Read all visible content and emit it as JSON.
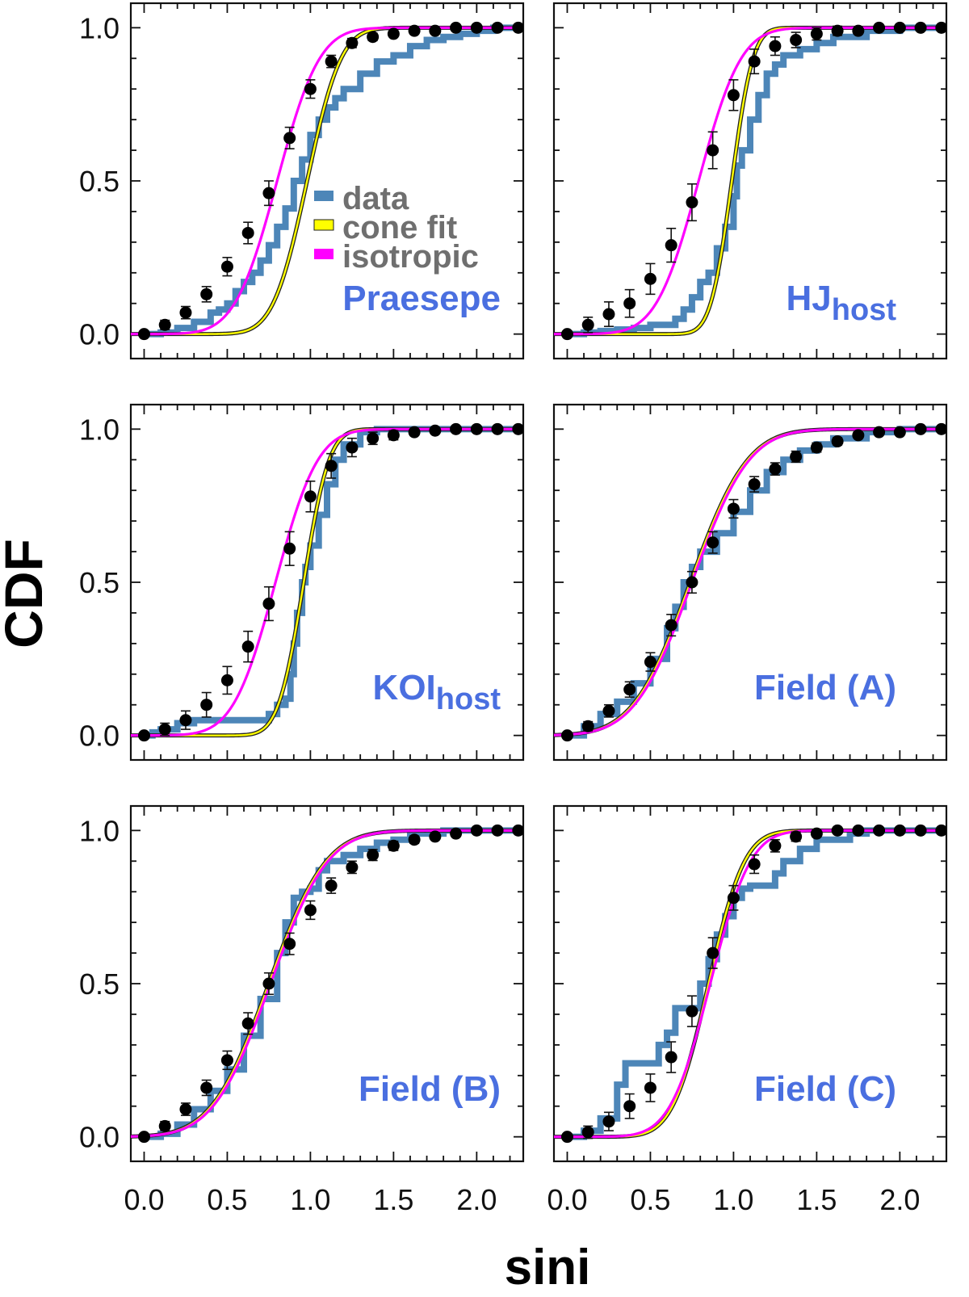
{
  "figure": {
    "xlabel": "sini",
    "ylabel": "CDF"
  },
  "legend": {
    "entries": [
      {
        "label": "data",
        "color": "#4d86b8"
      },
      {
        "label": "cone fit",
        "color": "#ffff00"
      },
      {
        "label": "isotropic",
        "color": "#ff00ff"
      }
    ]
  },
  "colors": {
    "data": "#4d86b8",
    "cone_fit": "#ffff00",
    "cone_fit_outline": "#222222",
    "isotropic": "#ff00ff",
    "points": "#000000",
    "label": "#4a6fe0"
  },
  "chart_data": [
    {
      "type": "line",
      "panel": "Praesepe",
      "label": "Praesepe",
      "sub": "",
      "xlim": [
        -0.08,
        2.28
      ],
      "ylim": [
        -0.08,
        1.08
      ],
      "xticks": [
        "0.0",
        "0.5",
        "1.0",
        "1.5",
        "2.0"
      ],
      "yticks": [
        "0.0",
        "0.5",
        "1.0"
      ],
      "cone_fit": {
        "median": 0.98,
        "width": 0.16
      },
      "isotropic": {
        "median": 0.8,
        "width": 0.2
      },
      "data_steps": [
        [
          0,
          0
        ],
        [
          0.1,
          0.005
        ],
        [
          0.2,
          0.02
        ],
        [
          0.3,
          0.04
        ],
        [
          0.4,
          0.07
        ],
        [
          0.45,
          0.08
        ],
        [
          0.5,
          0.1
        ],
        [
          0.55,
          0.14
        ],
        [
          0.6,
          0.17
        ],
        [
          0.65,
          0.2
        ],
        [
          0.7,
          0.24
        ],
        [
          0.75,
          0.29
        ],
        [
          0.8,
          0.35
        ],
        [
          0.85,
          0.41
        ],
        [
          0.9,
          0.5
        ],
        [
          0.95,
          0.57
        ],
        [
          1.0,
          0.65
        ],
        [
          1.05,
          0.7
        ],
        [
          1.1,
          0.74
        ],
        [
          1.15,
          0.77
        ],
        [
          1.2,
          0.8
        ],
        [
          1.3,
          0.85
        ],
        [
          1.4,
          0.89
        ],
        [
          1.5,
          0.91
        ],
        [
          1.6,
          0.94
        ],
        [
          1.7,
          0.96
        ],
        [
          1.8,
          0.97
        ],
        [
          1.9,
          0.98
        ],
        [
          2.0,
          0.99
        ],
        [
          2.1,
          1.0
        ],
        [
          2.28,
          1.0
        ]
      ],
      "points": {
        "x": [
          0.0,
          0.125,
          0.25,
          0.375,
          0.5,
          0.625,
          0.75,
          0.875,
          1.0,
          1.125,
          1.25,
          1.375,
          1.5,
          1.625,
          1.75,
          1.875,
          2.0,
          2.125,
          2.25
        ],
        "y": [
          0.0,
          0.03,
          0.07,
          0.13,
          0.22,
          0.33,
          0.46,
          0.64,
          0.8,
          0.89,
          0.95,
          0.97,
          0.98,
          0.99,
          0.99,
          1.0,
          1.0,
          1.0,
          1.0
        ],
        "err": [
          0.0,
          0.015,
          0.02,
          0.025,
          0.03,
          0.035,
          0.04,
          0.035,
          0.03,
          0.02,
          0.015,
          0.012,
          0.01,
          0.008,
          0.006,
          0.005,
          0.004,
          0.003,
          0.002
        ]
      }
    },
    {
      "type": "line",
      "panel": "HJ host",
      "label": "HJ",
      "sub": "host",
      "xlim": [
        -0.08,
        2.28
      ],
      "ylim": [
        -0.08,
        1.08
      ],
      "xticks": [
        "0.0",
        "0.5",
        "1.0",
        "1.5",
        "2.0"
      ],
      "yticks": [
        "0.0",
        "0.5",
        "1.0"
      ],
      "cone_fit": {
        "median": 0.99,
        "width": 0.1
      },
      "isotropic": {
        "median": 0.79,
        "width": 0.2
      },
      "data_steps": [
        [
          0,
          0
        ],
        [
          0.1,
          0.005
        ],
        [
          0.2,
          0.01
        ],
        [
          0.3,
          0.015
        ],
        [
          0.4,
          0.02
        ],
        [
          0.5,
          0.03
        ],
        [
          0.6,
          0.03
        ],
        [
          0.65,
          0.05
        ],
        [
          0.7,
          0.08
        ],
        [
          0.75,
          0.12
        ],
        [
          0.8,
          0.17
        ],
        [
          0.85,
          0.2
        ],
        [
          0.9,
          0.28
        ],
        [
          0.95,
          0.35
        ],
        [
          1.0,
          0.45
        ],
        [
          1.02,
          0.55
        ],
        [
          1.05,
          0.6
        ],
        [
          1.1,
          0.7
        ],
        [
          1.15,
          0.78
        ],
        [
          1.2,
          0.85
        ],
        [
          1.25,
          0.88
        ],
        [
          1.3,
          0.91
        ],
        [
          1.4,
          0.93
        ],
        [
          1.5,
          0.95
        ],
        [
          1.6,
          0.97
        ],
        [
          1.8,
          0.99
        ],
        [
          2.0,
          1.0
        ],
        [
          2.28,
          1.0
        ]
      ],
      "points": {
        "x": [
          0.0,
          0.125,
          0.25,
          0.375,
          0.5,
          0.625,
          0.75,
          0.875,
          1.0,
          1.125,
          1.25,
          1.375,
          1.5,
          1.625,
          1.75,
          1.875,
          2.0,
          2.125,
          2.25
        ],
        "y": [
          0.0,
          0.03,
          0.065,
          0.1,
          0.18,
          0.29,
          0.43,
          0.6,
          0.78,
          0.89,
          0.94,
          0.96,
          0.98,
          0.99,
          0.99,
          1.0,
          1.0,
          1.0,
          1.0
        ],
        "err": [
          0.0,
          0.025,
          0.04,
          0.045,
          0.05,
          0.055,
          0.06,
          0.06,
          0.05,
          0.04,
          0.03,
          0.025,
          0.02,
          0.015,
          0.01,
          0.008,
          0.006,
          0.005,
          0.004
        ]
      }
    },
    {
      "type": "line",
      "panel": "KOI host",
      "label": "KOI",
      "sub": "host",
      "xlim": [
        -0.08,
        2.28
      ],
      "ylim": [
        -0.08,
        1.08
      ],
      "xticks": [
        "0.0",
        "0.5",
        "1.0",
        "1.5",
        "2.0"
      ],
      "yticks": [
        "0.0",
        "0.5",
        "1.0"
      ],
      "cone_fit": {
        "median": 0.96,
        "width": 0.12
      },
      "isotropic": {
        "median": 0.79,
        "width": 0.2
      },
      "data_steps": [
        [
          0,
          0
        ],
        [
          0.05,
          0.01
        ],
        [
          0.1,
          0.02
        ],
        [
          0.2,
          0.04
        ],
        [
          0.3,
          0.05
        ],
        [
          0.5,
          0.05
        ],
        [
          0.65,
          0.05
        ],
        [
          0.75,
          0.07
        ],
        [
          0.8,
          0.1
        ],
        [
          0.85,
          0.12
        ],
        [
          0.88,
          0.2
        ],
        [
          0.9,
          0.3
        ],
        [
          0.92,
          0.4
        ],
        [
          0.95,
          0.5
        ],
        [
          0.97,
          0.55
        ],
        [
          1.0,
          0.62
        ],
        [
          1.05,
          0.72
        ],
        [
          1.1,
          0.82
        ],
        [
          1.15,
          0.9
        ],
        [
          1.2,
          0.95
        ],
        [
          1.3,
          0.99
        ],
        [
          1.4,
          1.0
        ],
        [
          2.28,
          1.0
        ]
      ],
      "points": {
        "x": [
          0.0,
          0.125,
          0.25,
          0.375,
          0.5,
          0.625,
          0.75,
          0.875,
          1.0,
          1.125,
          1.25,
          1.375,
          1.5,
          1.625,
          1.75,
          1.875,
          2.0,
          2.125,
          2.25
        ],
        "y": [
          0.0,
          0.02,
          0.05,
          0.1,
          0.18,
          0.29,
          0.43,
          0.61,
          0.78,
          0.88,
          0.94,
          0.97,
          0.98,
          0.99,
          0.995,
          1.0,
          1.0,
          1.0,
          1.0
        ],
        "err": [
          0.0,
          0.02,
          0.03,
          0.04,
          0.045,
          0.05,
          0.055,
          0.055,
          0.05,
          0.04,
          0.03,
          0.02,
          0.015,
          0.01,
          0.008,
          0.006,
          0.005,
          0.004,
          0.003
        ]
      }
    },
    {
      "type": "line",
      "panel": "Field (A)",
      "label": "Field (A)",
      "sub": "",
      "xlim": [
        -0.08,
        2.28
      ],
      "ylim": [
        -0.08,
        1.08
      ],
      "xticks": [
        "0.0",
        "0.5",
        "1.0",
        "1.5",
        "2.0"
      ],
      "yticks": [
        "0.0",
        "0.5",
        "1.0"
      ],
      "cone_fit": {
        "median": 0.74,
        "width": 0.27
      },
      "isotropic": {
        "median": 0.75,
        "width": 0.27
      },
      "data_steps": [
        [
          0,
          0
        ],
        [
          0.1,
          0.03
        ],
        [
          0.2,
          0.07
        ],
        [
          0.3,
          0.11
        ],
        [
          0.4,
          0.17
        ],
        [
          0.5,
          0.25
        ],
        [
          0.6,
          0.35
        ],
        [
          0.65,
          0.42
        ],
        [
          0.7,
          0.5
        ],
        [
          0.75,
          0.55
        ],
        [
          0.8,
          0.6
        ],
        [
          0.9,
          0.66
        ],
        [
          1.0,
          0.73
        ],
        [
          1.1,
          0.8
        ],
        [
          1.2,
          0.86
        ],
        [
          1.3,
          0.9
        ],
        [
          1.4,
          0.93
        ],
        [
          1.5,
          0.95
        ],
        [
          1.6,
          0.97
        ],
        [
          1.8,
          0.99
        ],
        [
          2.0,
          1.0
        ],
        [
          2.28,
          1.0
        ]
      ],
      "points": {
        "x": [
          0.0,
          0.125,
          0.25,
          0.375,
          0.5,
          0.625,
          0.75,
          0.875,
          1.0,
          1.125,
          1.25,
          1.375,
          1.5,
          1.625,
          1.75,
          1.875,
          2.0,
          2.125,
          2.25
        ],
        "y": [
          0.0,
          0.03,
          0.08,
          0.15,
          0.24,
          0.36,
          0.5,
          0.63,
          0.74,
          0.82,
          0.87,
          0.91,
          0.94,
          0.96,
          0.98,
          0.99,
          0.99,
          1.0,
          1.0
        ],
        "err": [
          0.0,
          0.015,
          0.02,
          0.025,
          0.03,
          0.035,
          0.035,
          0.035,
          0.03,
          0.025,
          0.02,
          0.018,
          0.015,
          0.012,
          0.01,
          0.008,
          0.006,
          0.005,
          0.004
        ]
      }
    },
    {
      "type": "line",
      "panel": "Field (B)",
      "label": "Field (B)",
      "sub": "",
      "xlim": [
        -0.08,
        2.28
      ],
      "ylim": [
        -0.08,
        1.08
      ],
      "xticks": [
        "0.0",
        "0.5",
        "1.0",
        "1.5",
        "2.0"
      ],
      "yticks": [
        "0.0",
        "0.5",
        "1.0"
      ],
      "cone_fit": {
        "median": 0.75,
        "width": 0.27
      },
      "isotropic": {
        "median": 0.76,
        "width": 0.27
      },
      "data_steps": [
        [
          0,
          0
        ],
        [
          0.1,
          0.01
        ],
        [
          0.2,
          0.04
        ],
        [
          0.3,
          0.09
        ],
        [
          0.4,
          0.15
        ],
        [
          0.5,
          0.22
        ],
        [
          0.6,
          0.33
        ],
        [
          0.7,
          0.45
        ],
        [
          0.8,
          0.6
        ],
        [
          0.85,
          0.7
        ],
        [
          0.9,
          0.78
        ],
        [
          0.95,
          0.8
        ],
        [
          1.0,
          0.81
        ],
        [
          1.05,
          0.87
        ],
        [
          1.1,
          0.9
        ],
        [
          1.2,
          0.92
        ],
        [
          1.3,
          0.94
        ],
        [
          1.4,
          0.96
        ],
        [
          1.5,
          0.97
        ],
        [
          1.6,
          0.99
        ],
        [
          1.8,
          1.0
        ],
        [
          2.28,
          1.0
        ]
      ],
      "points": {
        "x": [
          0.0,
          0.125,
          0.25,
          0.375,
          0.5,
          0.625,
          0.75,
          0.875,
          1.0,
          1.125,
          1.25,
          1.375,
          1.5,
          1.625,
          1.75,
          1.875,
          2.0,
          2.125,
          2.25
        ],
        "y": [
          0.0,
          0.035,
          0.09,
          0.16,
          0.25,
          0.37,
          0.5,
          0.63,
          0.74,
          0.82,
          0.88,
          0.92,
          0.95,
          0.97,
          0.98,
          0.99,
          1.0,
          1.0,
          1.0
        ],
        "err": [
          0.0,
          0.015,
          0.02,
          0.025,
          0.03,
          0.035,
          0.035,
          0.035,
          0.03,
          0.025,
          0.02,
          0.018,
          0.015,
          0.012,
          0.01,
          0.008,
          0.006,
          0.005,
          0.004
        ]
      }
    },
    {
      "type": "line",
      "panel": "Field (C)",
      "label": "Field (C)",
      "sub": "",
      "xlim": [
        -0.08,
        2.28
      ],
      "ylim": [
        -0.08,
        1.08
      ],
      "xticks": [
        "0.0",
        "0.5",
        "1.0",
        "1.5",
        "2.0"
      ],
      "yticks": [
        "0.0",
        "0.5",
        "1.0"
      ],
      "cone_fit": {
        "median": 0.85,
        "width": 0.17
      },
      "isotropic": {
        "median": 0.86,
        "width": 0.19
      },
      "data_steps": [
        [
          0,
          0
        ],
        [
          0.1,
          0.02
        ],
        [
          0.2,
          0.06
        ],
        [
          0.3,
          0.17
        ],
        [
          0.35,
          0.24
        ],
        [
          0.5,
          0.24
        ],
        [
          0.55,
          0.3
        ],
        [
          0.6,
          0.34
        ],
        [
          0.65,
          0.42
        ],
        [
          0.75,
          0.42
        ],
        [
          0.8,
          0.5
        ],
        [
          0.85,
          0.58
        ],
        [
          0.9,
          0.66
        ],
        [
          0.95,
          0.72
        ],
        [
          1.0,
          0.78
        ],
        [
          1.05,
          0.81
        ],
        [
          1.1,
          0.82
        ],
        [
          1.2,
          0.82
        ],
        [
          1.25,
          0.86
        ],
        [
          1.3,
          0.9
        ],
        [
          1.4,
          0.94
        ],
        [
          1.5,
          0.97
        ],
        [
          1.7,
          0.99
        ],
        [
          1.8,
          1.0
        ],
        [
          2.28,
          1.0
        ]
      ],
      "points": {
        "x": [
          0.0,
          0.125,
          0.25,
          0.375,
          0.5,
          0.625,
          0.75,
          0.875,
          1.0,
          1.125,
          1.25,
          1.375,
          1.5,
          1.625,
          1.75,
          1.875,
          2.0,
          2.125,
          2.25
        ],
        "y": [
          0.0,
          0.015,
          0.05,
          0.1,
          0.16,
          0.26,
          0.41,
          0.6,
          0.78,
          0.89,
          0.95,
          0.98,
          0.99,
          1.0,
          1.0,
          1.0,
          1.0,
          1.0,
          1.0
        ],
        "err": [
          0.0,
          0.02,
          0.03,
          0.04,
          0.045,
          0.05,
          0.05,
          0.05,
          0.04,
          0.03,
          0.02,
          0.015,
          0.01,
          0.008,
          0.006,
          0.005,
          0.004,
          0.003,
          0.002
        ]
      }
    }
  ]
}
